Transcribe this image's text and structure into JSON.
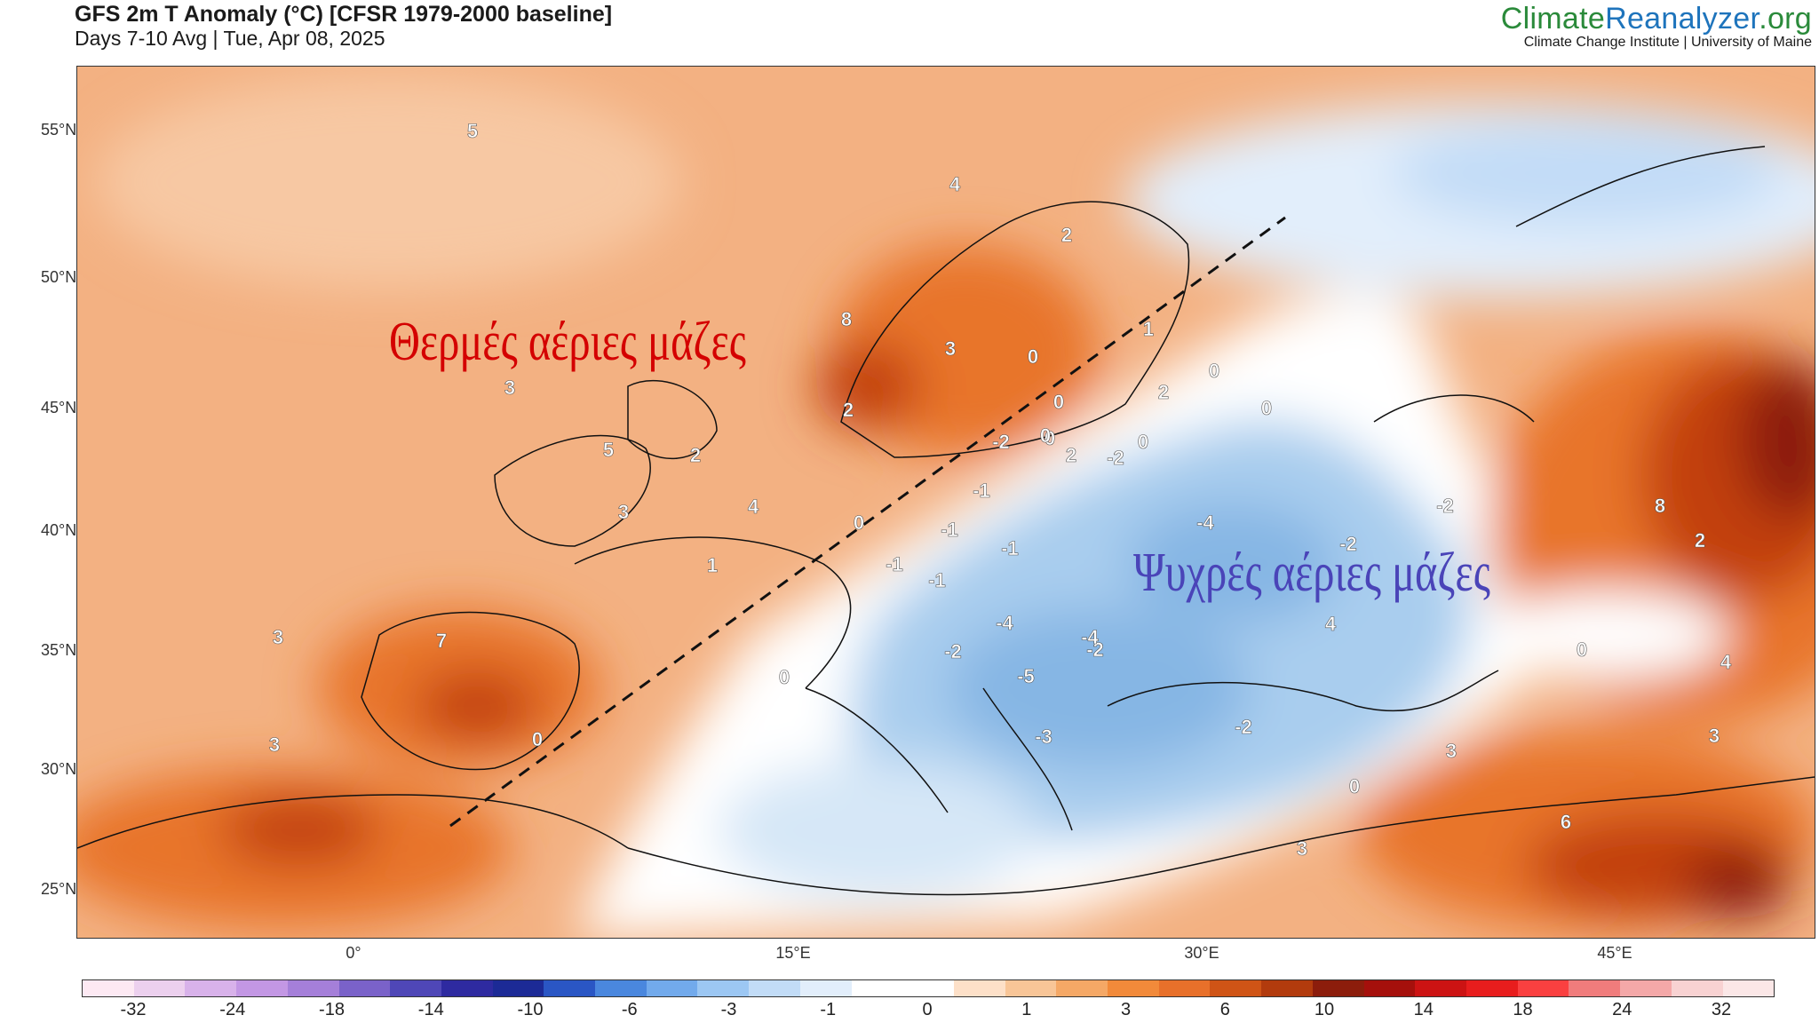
{
  "header": {
    "title": "GFS 2m T Anomaly (°C) [CFSR 1979-2000 baseline]",
    "subtitle": "Days 7-10 Avg | Tue, Apr 08, 2025"
  },
  "brand": {
    "name_part1": "Climate",
    "name_part2": "Reanalyzer",
    "name_part3": ".org",
    "subtitle": "Climate Change Institute | University of Maine"
  },
  "map": {
    "lat_labels": [
      "55°N",
      "50°N",
      "45°N",
      "40°N",
      "35°N",
      "30°N",
      "25°N"
    ],
    "lon_labels": [
      "0°",
      "15°E",
      "30°E",
      "45°E"
    ],
    "annotations": {
      "warm": "Θερμές αέριες μάζες",
      "cold": "Ψυχρές αέριες μάζες"
    },
    "anomaly_labels": [
      "5",
      "4",
      "2",
      "8",
      "3",
      "2",
      "1",
      "0",
      "0",
      "0",
      "0",
      "-2",
      "2",
      "3",
      "5",
      "2",
      "4",
      "3",
      "1",
      "0",
      "-1",
      "-1",
      "-1",
      "-1",
      "-4",
      "-2",
      "-2",
      "3",
      "7",
      "3",
      "0",
      "0",
      "-2",
      "-4",
      "-4",
      "-5",
      "-3",
      "-2",
      "3",
      "0",
      "3",
      "6",
      "3",
      "2",
      "4",
      "0",
      "-2",
      "8",
      "4",
      "2",
      "0",
      "-2",
      "-1",
      "0",
      "0"
    ],
    "colors": {
      "warm_light": "#f7c8a3",
      "warm_mid": "#f3b182",
      "warm_strong": "#e8752a",
      "warm_deep": "#c2410c",
      "warm_max": "#8c1d0c",
      "neutral": "#ffffff",
      "cold_light": "#d6e7f7",
      "cold_mid": "#a9cdee",
      "cold_strong": "#86b6e4",
      "warm_annotation": "#d40000",
      "cold_annotation": "#4a44b8"
    }
  },
  "colorbar": {
    "tick_labels": [
      "-32",
      "-24",
      "-18",
      "-14",
      "-10",
      "-6",
      "-3",
      "-1",
      "0",
      "1",
      "3",
      "6",
      "10",
      "14",
      "18",
      "24",
      "32"
    ],
    "colors": [
      "#fde9f3",
      "#ecd0ee",
      "#d8b2ea",
      "#c397e4",
      "#a57fd9",
      "#7a62c9",
      "#4f47b7",
      "#2e2aa0",
      "#1c2a96",
      "#2a56c4",
      "#4a87de",
      "#72aaec",
      "#9cc7f3",
      "#c2dcf7",
      "#e2eefb",
      "#ffffff",
      "#ffffff",
      "#fde0c8",
      "#f8c597",
      "#f5a866",
      "#f28a3a",
      "#e8702a",
      "#cf5416",
      "#b23b0d",
      "#8c1d0c",
      "#a5100c",
      "#cc1313",
      "#e81d1d",
      "#fa4040",
      "#f07c7c",
      "#f4a8a8",
      "#f8d2d2",
      "#fbe7e7"
    ]
  }
}
